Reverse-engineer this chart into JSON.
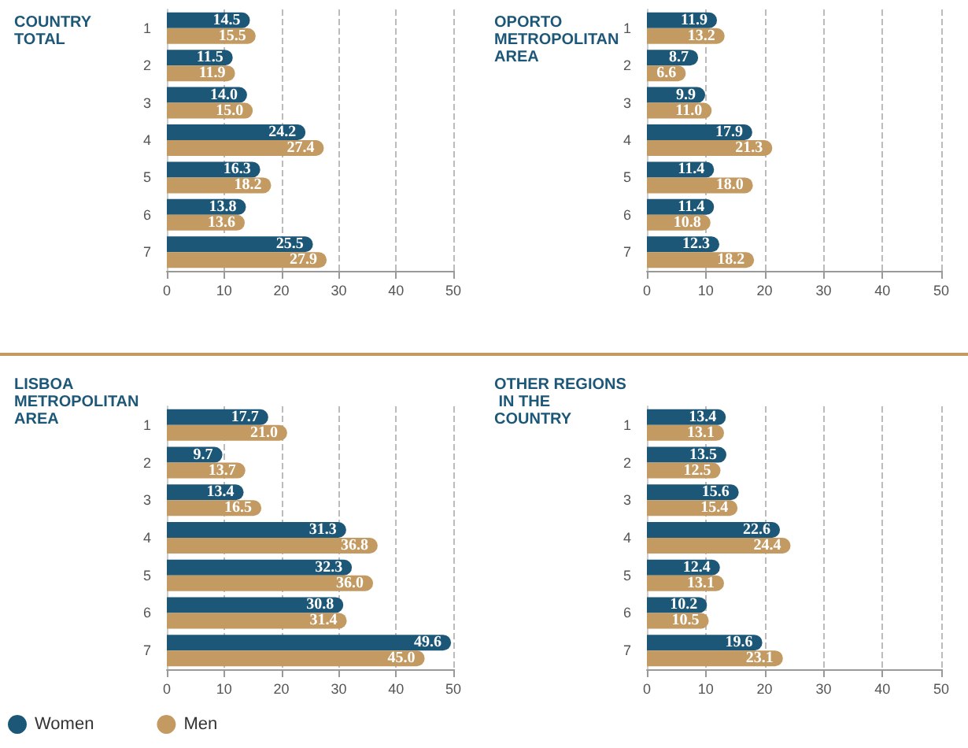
{
  "chart_data": [
    {
      "type": "bar",
      "orientation": "horizontal",
      "title": "COUNTRY TOTAL",
      "categories": [
        "1",
        "2",
        "3",
        "4",
        "5",
        "6",
        "7"
      ],
      "xlim": [
        0,
        50
      ],
      "xticks": [
        0,
        10,
        20,
        30,
        40,
        50
      ],
      "grid": "x",
      "series": [
        {
          "color": "#1d5777",
          "values": [
            14.5,
            11.5,
            14.0,
            24.2,
            16.3,
            13.8,
            25.5
          ],
          "value_labels": [
            "14.5",
            "11.5",
            "14.0",
            "24.2",
            "16.3",
            "13.8",
            "25.5"
          ]
        },
        {
          "color": "#c39a62",
          "values": [
            15.5,
            11.9,
            15.0,
            27.4,
            18.2,
            13.6,
            27.9
          ],
          "value_labels": [
            "15.5",
            "11.9",
            "15.0",
            "27.4",
            "18.2",
            "13.6",
            "27.9"
          ]
        }
      ]
    },
    {
      "type": "bar",
      "orientation": "horizontal",
      "title": "OPORTO METROPOLITAN AREA",
      "categories": [
        "1",
        "2",
        "3",
        "4",
        "5",
        "6",
        "7"
      ],
      "xlim": [
        0,
        50
      ],
      "xticks": [
        0,
        10,
        20,
        30,
        40,
        50
      ],
      "grid": "x",
      "series": [
        {
          "color": "#1d5777",
          "values": [
            11.9,
            8.7,
            9.9,
            17.9,
            11.4,
            11.4,
            12.3
          ],
          "value_labels": [
            "11.9",
            "8.7",
            "9.9",
            "17.9",
            "11.4",
            "11.4",
            "12.3"
          ]
        },
        {
          "color": "#c39a62",
          "values": [
            13.2,
            6.6,
            11.0,
            21.3,
            18.0,
            10.8,
            18.2
          ],
          "value_labels": [
            "13.2",
            "6.6",
            "11.0",
            "21.3",
            "18.0",
            "10.8",
            "18.2"
          ]
        }
      ]
    },
    {
      "type": "bar",
      "orientation": "horizontal",
      "title": "LISBOA METROPOLITAN AREA",
      "categories": [
        "1",
        "2",
        "3",
        "4",
        "5",
        "6",
        "7"
      ],
      "xlim": [
        0,
        50
      ],
      "xticks": [
        0,
        10,
        20,
        30,
        40,
        50
      ],
      "grid": "x",
      "legend": "bottom left",
      "series": [
        {
          "name": "Women",
          "color": "#1d5777",
          "values": [
            17.7,
            9.7,
            13.4,
            31.3,
            32.3,
            30.8,
            49.6
          ],
          "value_labels": [
            "17.7",
            "9.7",
            "13.4",
            "31.3",
            "32.3",
            "30.8",
            "49.6"
          ]
        },
        {
          "name": "Men",
          "color": "#c39a62",
          "values": [
            21.0,
            13.7,
            16.5,
            36.8,
            36.0,
            31.4,
            45.0
          ],
          "value_labels": [
            "21.0",
            "13.7",
            "16.5",
            "36.8",
            "36.0",
            "31.4",
            "45.0"
          ]
        }
      ]
    },
    {
      "type": "bar",
      "orientation": "horizontal",
      "title": "OTHER REGIONS IN THE COUNTRY",
      "categories": [
        "1",
        "2",
        "3",
        "4",
        "5",
        "6",
        "7"
      ],
      "xlim": [
        0,
        50
      ],
      "xticks": [
        0,
        10,
        20,
        30,
        40,
        50
      ],
      "grid": "x",
      "series": [
        {
          "color": "#1d5777",
          "values": [
            13.4,
            13.5,
            15.6,
            22.6,
            12.4,
            10.2,
            19.6
          ],
          "value_labels": [
            "13.4",
            "13.5",
            "15.6",
            "22.6",
            "12.4",
            "10.2",
            "19.6"
          ]
        },
        {
          "color": "#c39a62",
          "values": [
            13.1,
            12.5,
            15.4,
            24.4,
            13.1,
            10.5,
            23.1
          ],
          "value_labels": [
            "13.1",
            "12.5",
            "15.4",
            "24.4",
            "13.1",
            "10.5",
            "23.1"
          ]
        }
      ]
    }
  ]
}
